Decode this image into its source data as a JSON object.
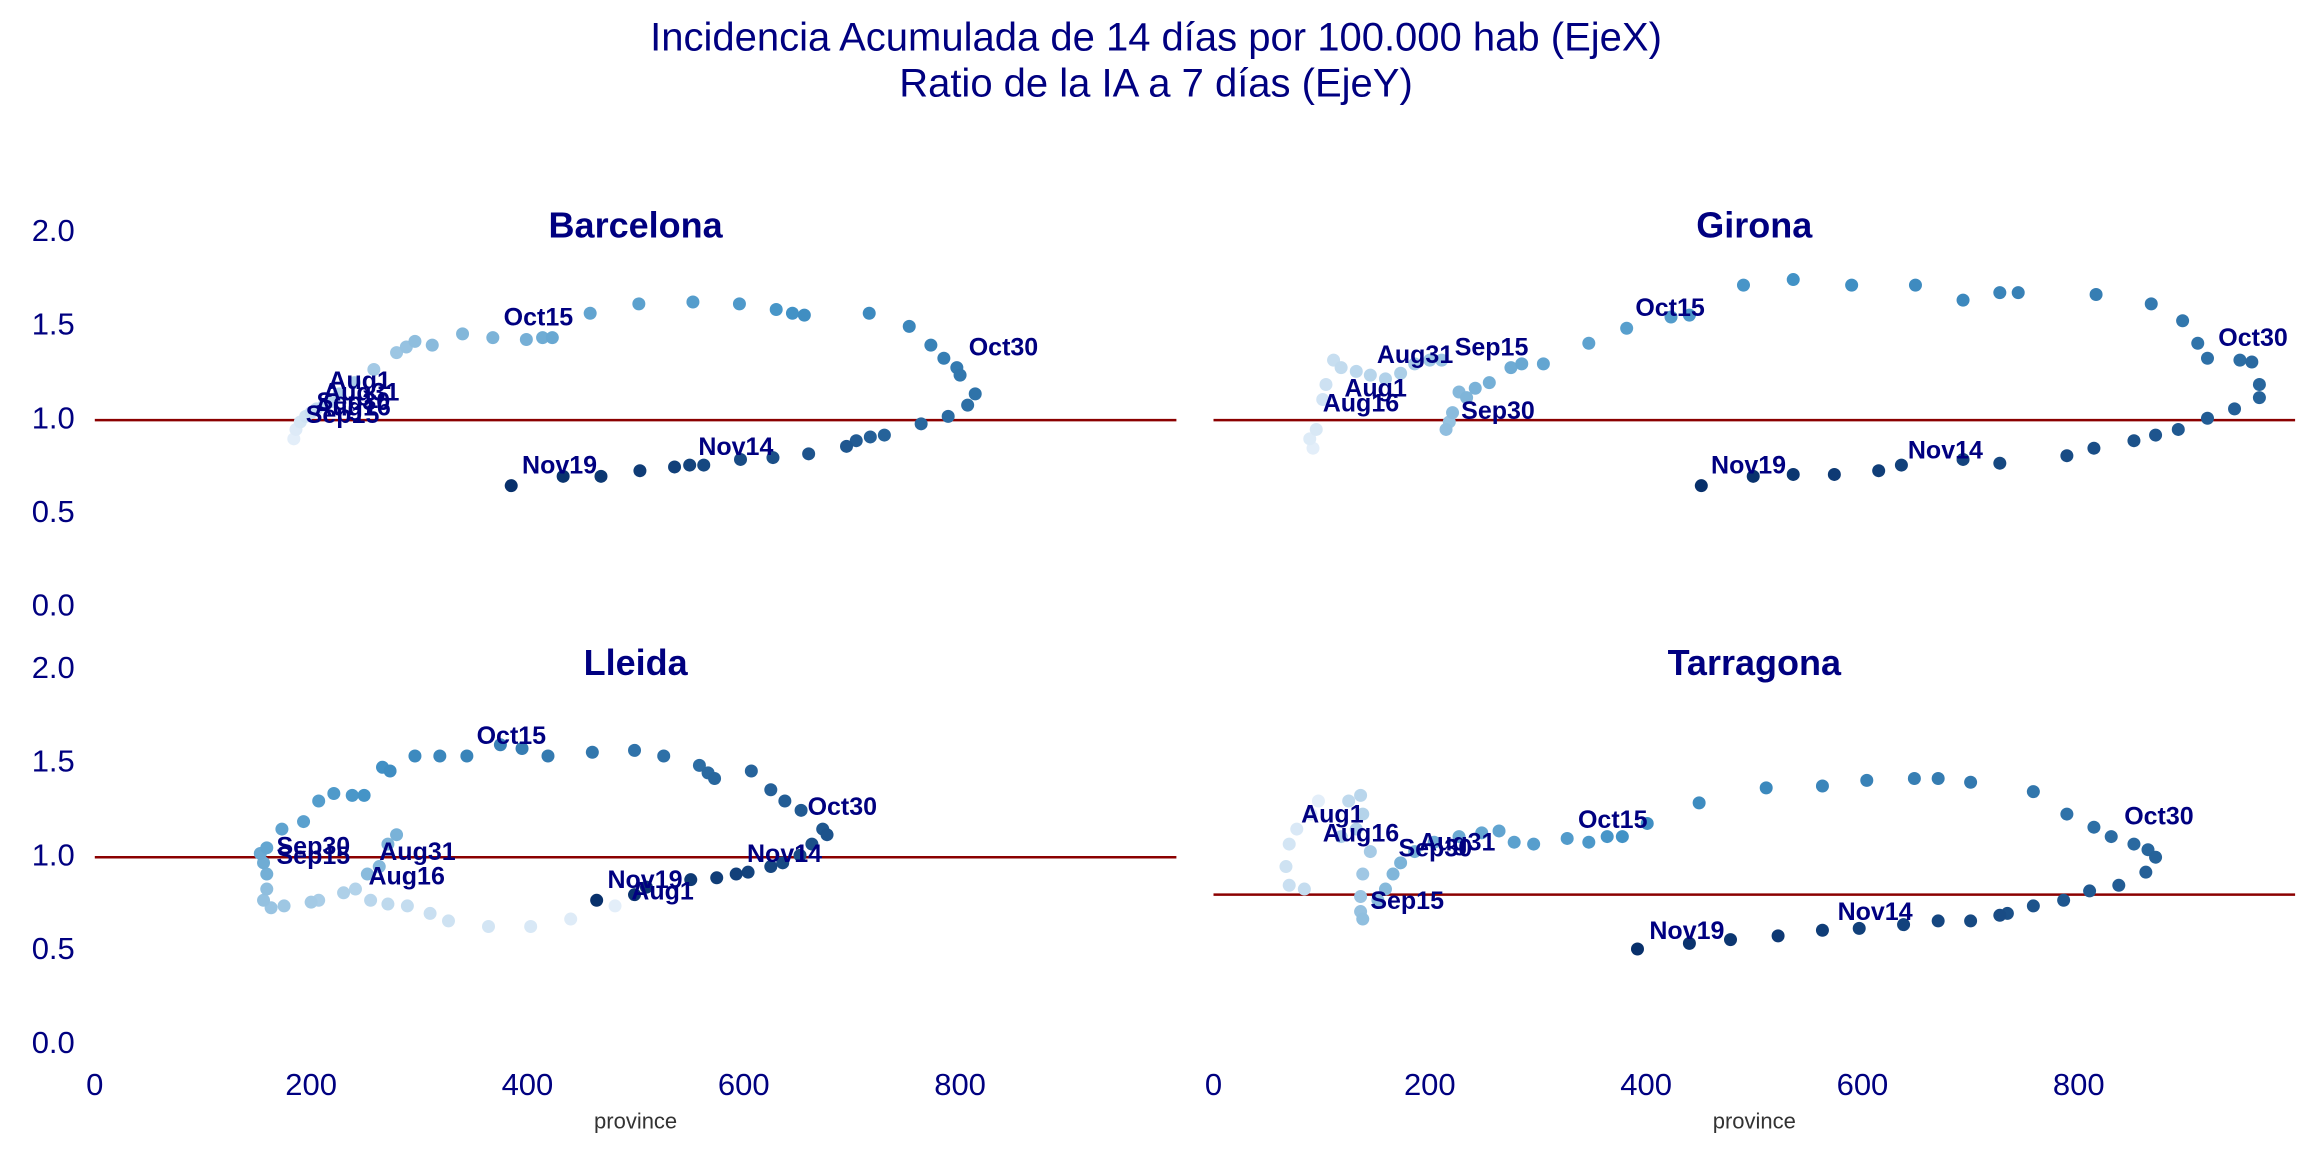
{
  "title": "Incidencia Acumulada de 14 días por 100.000 hab (EjeX)",
  "subtitle": "Ratio de la IA a 7 días (EjeY)",
  "chart_data": [
    {
      "type": "scatter",
      "title": "Barcelona",
      "colormap": [
        "#e3eef9",
        "#4292c6",
        "#08306b"
      ],
      "xlim": [
        0,
        1000
      ],
      "ylim": [
        0,
        2.2
      ],
      "yticks": [
        {
          "value": 0,
          "label": "0.0"
        },
        0.5,
        {
          "value": 1,
          "label": "1.0"
        },
        1.5,
        {
          "value": 2,
          "label": "2.0"
        }
      ],
      "hline": 1,
      "hline_color": "#8b0000",
      "x": [
        184,
        186,
        190,
        195,
        200,
        205,
        212,
        220,
        226,
        240,
        258,
        279,
        288,
        296,
        312,
        340,
        368,
        399,
        414,
        423,
        458,
        503,
        553,
        596,
        630,
        645,
        656,
        716,
        753,
        773,
        785,
        797,
        800,
        814,
        807,
        789,
        764,
        730,
        717,
        704,
        695,
        660,
        627,
        597,
        563,
        550,
        536,
        504,
        468,
        433,
        385
      ],
      "values": [
        0.9,
        0.95,
        0.99,
        1.02,
        1.04,
        1.06,
        1.08,
        1.1,
        1.14,
        1.2,
        1.27,
        1.36,
        1.39,
        1.42,
        1.4,
        1.46,
        1.44,
        1.43,
        1.44,
        1.44,
        1.57,
        1.62,
        1.63,
        1.62,
        1.59,
        1.57,
        1.56,
        1.57,
        1.5,
        1.4,
        1.33,
        1.28,
        1.24,
        1.14,
        1.08,
        1.02,
        0.98,
        0.92,
        0.91,
        0.89,
        0.86,
        0.82,
        0.8,
        0.79,
        0.76,
        0.76,
        0.75,
        0.73,
        0.7,
        0.7,
        0.65
      ],
      "annotations": [
        {
          "text": "Aug1",
          "x": 216,
          "y": 1.2
        },
        {
          "text": "Aug31",
          "x": 211,
          "y": 1.14
        },
        {
          "text": "Sep30",
          "x": 205,
          "y": 1.09
        },
        {
          "text": "Aug16",
          "x": 203,
          "y": 1.06
        },
        {
          "text": "Sep15",
          "x": 195,
          "y": 1.02
        },
        {
          "text": "Oct15",
          "x": 378,
          "y": 1.54
        },
        {
          "text": "Oct30",
          "x": 808,
          "y": 1.38
        },
        {
          "text": "Nov14",
          "x": 558,
          "y": 0.85
        },
        {
          "text": "Nov19",
          "x": 395,
          "y": 0.75
        }
      ]
    },
    {
      "type": "scatter",
      "title": "Girona",
      "colormap": [
        "#e3eef9",
        "#4292c6",
        "#08306b"
      ],
      "xlim": [
        0,
        1000
      ],
      "ylim": [
        0,
        2.2
      ],
      "hline": 1,
      "hline_color": "#8b0000",
      "x": [
        92,
        89,
        95,
        101,
        104,
        111,
        118,
        132,
        145,
        159,
        173,
        186,
        200,
        211,
        218,
        215,
        221,
        227,
        234,
        242,
        255,
        275,
        285,
        305,
        347,
        382,
        423,
        440,
        490,
        536,
        590,
        649,
        693,
        727,
        744,
        816,
        867,
        896,
        910,
        919,
        949,
        960,
        967,
        967,
        944,
        919,
        892,
        871,
        851,
        814,
        789,
        727,
        693,
        636,
        615,
        574,
        536,
        499,
        451
      ],
      "values": [
        0.85,
        0.9,
        0.95,
        1.11,
        1.19,
        1.32,
        1.28,
        1.26,
        1.24,
        1.22,
        1.25,
        1.3,
        1.32,
        1.32,
        0.99,
        0.95,
        1.04,
        1.15,
        1.12,
        1.17,
        1.2,
        1.28,
        1.3,
        1.3,
        1.41,
        1.49,
        1.55,
        1.56,
        1.72,
        1.75,
        1.72,
        1.72,
        1.64,
        1.68,
        1.68,
        1.67,
        1.62,
        1.53,
        1.41,
        1.33,
        1.32,
        1.31,
        1.19,
        1.12,
        1.06,
        1.01,
        0.95,
        0.92,
        0.89,
        0.85,
        0.81,
        0.77,
        0.79,
        0.76,
        0.73,
        0.71,
        0.71,
        0.7,
        0.65
      ],
      "annotations": [
        {
          "text": "Aug31",
          "x": 151,
          "y": 1.34
        },
        {
          "text": "Sep15",
          "x": 223,
          "y": 1.38
        },
        {
          "text": "Aug1",
          "x": 121,
          "y": 1.16
        },
        {
          "text": "Aug16",
          "x": 101,
          "y": 1.08
        },
        {
          "text": "Sep30",
          "x": 229,
          "y": 1.04
        },
        {
          "text": "Oct15",
          "x": 390,
          "y": 1.59
        },
        {
          "text": "Oct30",
          "x": 929,
          "y": 1.43
        },
        {
          "text": "Nov14",
          "x": 642,
          "y": 0.83
        },
        {
          "text": "Nov19",
          "x": 460,
          "y": 0.75
        }
      ]
    },
    {
      "type": "scatter",
      "title": "Lleida",
      "colormap": [
        "#e3eef9",
        "#4292c6",
        "#08306b"
      ],
      "xlim": [
        0,
        1000
      ],
      "ylim": [
        0,
        2.2
      ],
      "xlabel": "province",
      "xticks": [
        0,
        200,
        400,
        600,
        800
      ],
      "yticks": [
        {
          "value": 0,
          "label": "0.0"
        },
        0.5,
        {
          "value": 1,
          "label": "1.0"
        },
        1.5,
        {
          "value": 2,
          "label": "2.0"
        }
      ],
      "hline": 1,
      "hline_color": "#8b0000",
      "x": [
        481,
        440,
        403,
        364,
        327,
        310,
        289,
        271,
        255,
        241,
        230,
        207,
        200,
        175,
        163,
        156,
        159,
        252,
        263,
        271,
        279,
        159,
        156,
        153,
        159,
        173,
        193,
        207,
        221,
        238,
        249,
        266,
        273,
        296,
        319,
        344,
        375,
        395,
        419,
        460,
        499,
        526,
        559,
        567,
        573,
        607,
        625,
        638,
        653,
        673,
        677,
        663,
        652,
        636,
        625,
        604,
        593,
        575,
        551,
        510,
        499,
        464
      ],
      "values": [
        0.74,
        0.67,
        0.63,
        0.63,
        0.66,
        0.7,
        0.74,
        0.75,
        0.77,
        0.83,
        0.81,
        0.77,
        0.76,
        0.74,
        0.73,
        0.77,
        0.83,
        0.91,
        0.95,
        1.07,
        1.12,
        0.91,
        0.97,
        1.02,
        1.05,
        1.15,
        1.19,
        1.3,
        1.34,
        1.33,
        1.33,
        1.48,
        1.46,
        1.54,
        1.54,
        1.54,
        1.6,
        1.58,
        1.54,
        1.56,
        1.57,
        1.54,
        1.49,
        1.45,
        1.42,
        1.46,
        1.36,
        1.3,
        1.25,
        1.15,
        1.12,
        1.07,
        1.01,
        0.97,
        0.95,
        0.92,
        0.91,
        0.89,
        0.88,
        0.84,
        0.8,
        0.77
      ],
      "annotations": [
        {
          "text": "Oct15",
          "x": 353,
          "y": 1.64
        },
        {
          "text": "Oct30",
          "x": 659,
          "y": 1.26
        },
        {
          "text": "Aug31",
          "x": 263,
          "y": 1.02
        },
        {
          "text": "Aug16",
          "x": 253,
          "y": 0.89
        },
        {
          "text": "Sep30",
          "x": 168,
          "y": 1.05
        },
        {
          "text": "Sep15",
          "x": 168,
          "y": 1.0
        },
        {
          "text": "Nov19",
          "x": 474,
          "y": 0.87
        },
        {
          "text": "Aug1",
          "x": 496,
          "y": 0.81
        },
        {
          "text": "Nov14",
          "x": 603,
          "y": 1.01
        }
      ]
    },
    {
      "type": "scatter",
      "title": "Tarragona",
      "colormap": [
        "#e3eef9",
        "#4292c6",
        "#08306b"
      ],
      "xlim": [
        0,
        1000
      ],
      "ylim": [
        0,
        2.2
      ],
      "xlabel": "province",
      "xticks": [
        0,
        200,
        400,
        600,
        800
      ],
      "hline": 0.8,
      "hline_color": "#8b0000",
      "x": [
        97,
        90,
        77,
        70,
        67,
        70,
        84,
        125,
        136,
        138,
        132,
        118,
        145,
        138,
        136,
        136,
        138,
        152,
        159,
        166,
        173,
        186,
        204,
        227,
        248,
        264,
        278,
        296,
        327,
        347,
        364,
        378,
        401,
        449,
        511,
        563,
        604,
        648,
        670,
        700,
        758,
        789,
        814,
        830,
        851,
        864,
        871,
        862,
        837,
        810,
        786,
        758,
        734,
        727,
        700,
        670,
        638,
        597,
        563,
        522,
        478,
        440,
        392
      ],
      "values": [
        1.3,
        1.23,
        1.15,
        1.07,
        0.95,
        0.85,
        0.83,
        1.3,
        1.33,
        1.23,
        1.15,
        1.11,
        1.03,
        0.91,
        0.79,
        0.71,
        0.67,
        0.77,
        0.83,
        0.91,
        0.97,
        1.03,
        1.08,
        1.11,
        1.13,
        1.14,
        1.08,
        1.07,
        1.1,
        1.08,
        1.11,
        1.11,
        1.18,
        1.29,
        1.37,
        1.38,
        1.41,
        1.42,
        1.42,
        1.4,
        1.35,
        1.23,
        1.16,
        1.11,
        1.07,
        1.04,
        1.0,
        0.92,
        0.85,
        0.82,
        0.77,
        0.74,
        0.7,
        0.69,
        0.66,
        0.66,
        0.64,
        0.62,
        0.61,
        0.58,
        0.56,
        0.54,
        0.51
      ],
      "annotations": [
        {
          "text": "Aug1",
          "x": 81,
          "y": 1.22
        },
        {
          "text": "Aug16",
          "x": 101,
          "y": 1.12
        },
        {
          "text": "Aug31",
          "x": 190,
          "y": 1.07
        },
        {
          "text": "Sep30",
          "x": 171,
          "y": 1.04
        },
        {
          "text": "Sep15",
          "x": 145,
          "y": 0.76
        },
        {
          "text": "Oct15",
          "x": 337,
          "y": 1.19
        },
        {
          "text": "Oct30",
          "x": 842,
          "y": 1.21
        },
        {
          "text": "Nov14",
          "x": 577,
          "y": 0.7
        },
        {
          "text": "Nov19",
          "x": 403,
          "y": 0.6
        }
      ]
    }
  ]
}
